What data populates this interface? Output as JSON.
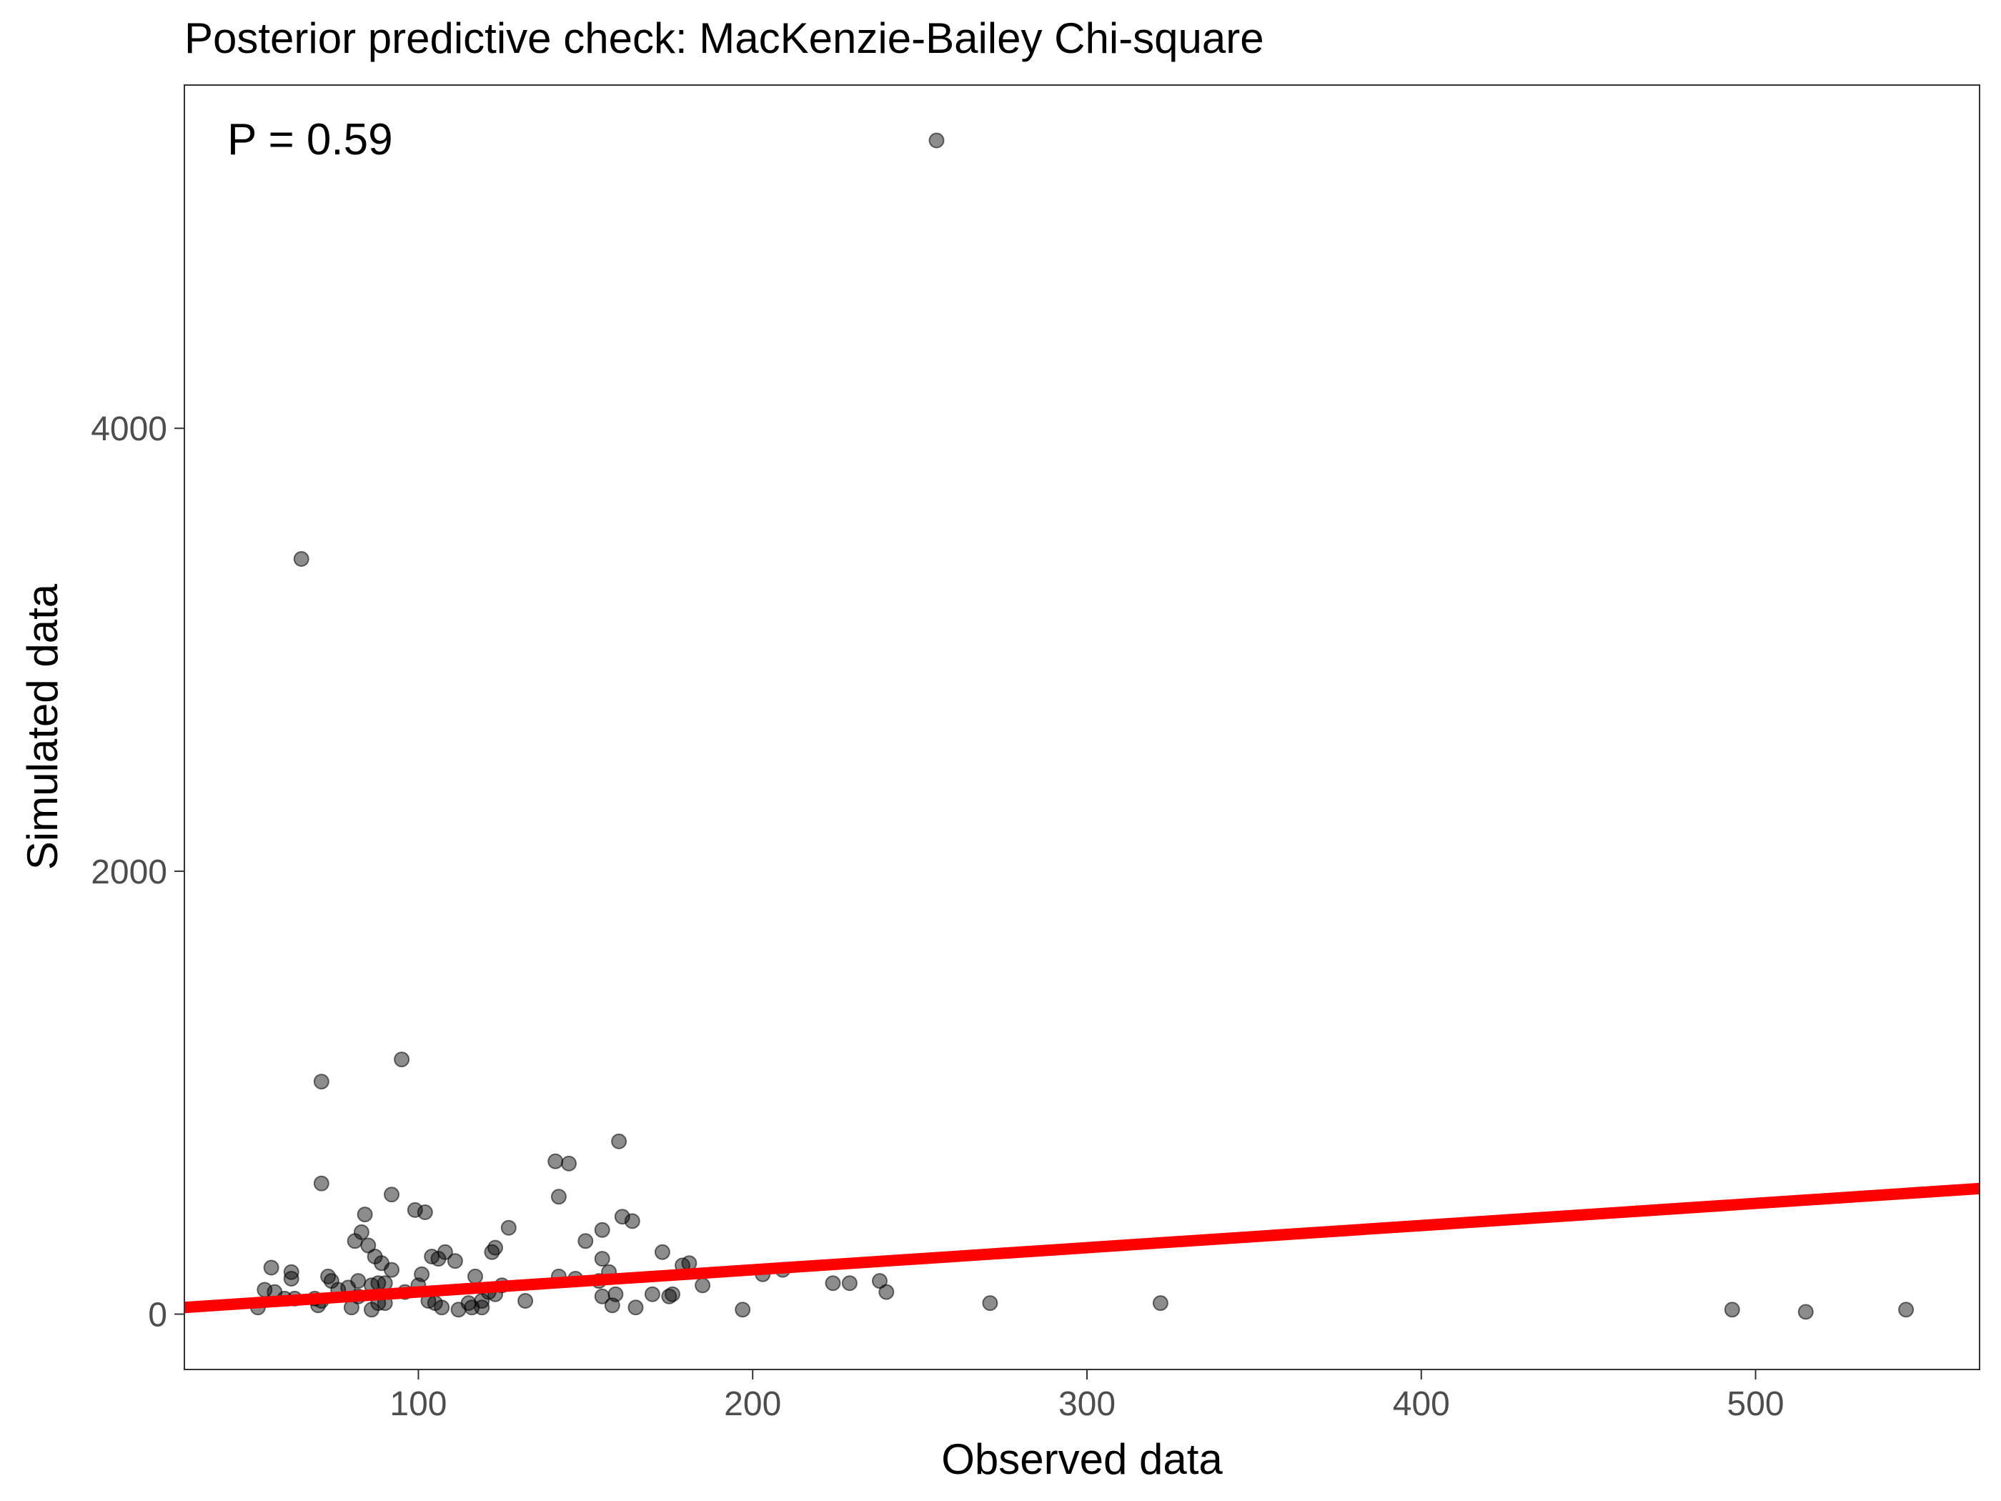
{
  "chart_data": {
    "type": "scatter",
    "title": "Posterior predictive check: MacKenzie-Bailey Chi-square",
    "xlabel": "Observed data",
    "ylabel": "Simulated data",
    "annotation": "P = 0.59",
    "xlim": [
      30,
      567
    ],
    "ylim": [
      -250,
      5550
    ],
    "x_ticks": [
      100,
      200,
      300,
      400,
      500
    ],
    "x_tick_labels": [
      "100",
      "200",
      "300",
      "400",
      "500"
    ],
    "y_ticks": [
      0,
      2000,
      4000
    ],
    "y_tick_labels": [
      "0",
      "2000",
      "4000"
    ],
    "grid": false,
    "point_color": "#000000",
    "point_opacity": 0.45,
    "line_color": "#ff0000",
    "reference_line": {
      "slope": 1,
      "intercept": 0
    },
    "points": [
      [
        255,
        5300
      ],
      [
        65,
        3410
      ],
      [
        95,
        1150
      ],
      [
        71,
        1050
      ],
      [
        160,
        780
      ],
      [
        141,
        690
      ],
      [
        145,
        680
      ],
      [
        71,
        590
      ],
      [
        92,
        540
      ],
      [
        142,
        530
      ],
      [
        99,
        470
      ],
      [
        102,
        460
      ],
      [
        84,
        450
      ],
      [
        161,
        440
      ],
      [
        164,
        420
      ],
      [
        127,
        390
      ],
      [
        155,
        380
      ],
      [
        83,
        370
      ],
      [
        150,
        330
      ],
      [
        81,
        330
      ],
      [
        85,
        310
      ],
      [
        173,
        280
      ],
      [
        108,
        280
      ],
      [
        87,
        260
      ],
      [
        104,
        260
      ],
      [
        106,
        250
      ],
      [
        155,
        250
      ],
      [
        111,
        240
      ],
      [
        181,
        230
      ],
      [
        89,
        230
      ],
      [
        179,
        220
      ],
      [
        56,
        210
      ],
      [
        92,
        200
      ],
      [
        62,
        190
      ],
      [
        209,
        200
      ],
      [
        123,
        300
      ],
      [
        122,
        280
      ],
      [
        157,
        190
      ],
      [
        101,
        180
      ],
      [
        203,
        180
      ],
      [
        142,
        170
      ],
      [
        117,
        170
      ],
      [
        73,
        170
      ],
      [
        147,
        160
      ],
      [
        62,
        160
      ],
      [
        154,
        150
      ],
      [
        238,
        150
      ],
      [
        82,
        150
      ],
      [
        74,
        150
      ],
      [
        88,
        140
      ],
      [
        90,
        140
      ],
      [
        229,
        140
      ],
      [
        86,
        130
      ],
      [
        224,
        140
      ],
      [
        125,
        130
      ],
      [
        185,
        130
      ],
      [
        100,
        130
      ],
      [
        79,
        120
      ],
      [
        76,
        110
      ],
      [
        54,
        110
      ],
      [
        240,
        100
      ],
      [
        57,
        100
      ],
      [
        96,
        100
      ],
      [
        121,
        100
      ],
      [
        159,
        90
      ],
      [
        176,
        90
      ],
      [
        175,
        80
      ],
      [
        123,
        90
      ],
      [
        170,
        90
      ],
      [
        155,
        80
      ],
      [
        63,
        70
      ],
      [
        60,
        70
      ],
      [
        82,
        80
      ],
      [
        69,
        70
      ],
      [
        71,
        60
      ],
      [
        103,
        60
      ],
      [
        119,
        60
      ],
      [
        132,
        60
      ],
      [
        88,
        50
      ],
      [
        115,
        50
      ],
      [
        90,
        50
      ],
      [
        105,
        50
      ],
      [
        271,
        50
      ],
      [
        322,
        50
      ],
      [
        70,
        40
      ],
      [
        158,
        40
      ],
      [
        80,
        30
      ],
      [
        52,
        30
      ],
      [
        116,
        30
      ],
      [
        119,
        30
      ],
      [
        107,
        30
      ],
      [
        165,
        30
      ],
      [
        112,
        20
      ],
      [
        86,
        20
      ],
      [
        197,
        20
      ],
      [
        493,
        20
      ],
      [
        545,
        20
      ],
      [
        515,
        10
      ]
    ]
  }
}
